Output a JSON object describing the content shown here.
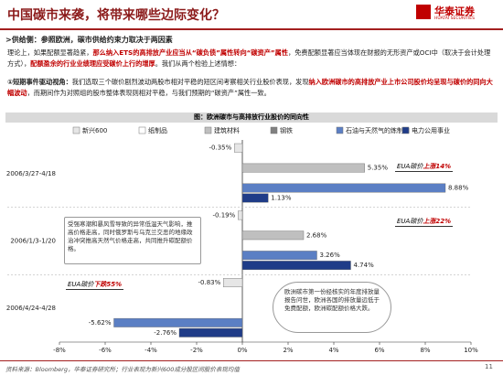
{
  "header": {
    "title": "中国碳市来袭，将带来哪些边际变化？",
    "logo": "华泰证券",
    "logo_en": "HUATAI SECURITIES"
  },
  "section": ">供给侧：参照欧洲，碳市供给约束力取决于两因素",
  "paragraphs": [
    [
      "理论上，如果配额显著趋紧，",
      "那么纳入ETS的高排放产业应当从“碳负债”属性转向“碳资产”属性",
      "，免费配额显著应当体现在财报的无形资产或OCI中（取决于会计处理方式），",
      "配额盈余的行业业绩理应受碳价上行的增厚",
      "。我们从两个检验上述情想："
    ],
    [
      "①短期事件驱动视角：",
      "我们选取三个碳价剧烈波动两股市相对平稳的短区间考察相关行业股价表现，发现",
      "纳入欧洲碳市的高排放产业上市公司股价均呈现与碳价的同向大幅波动",
      "，而期间作为对照组的股市整体表现则相对平稳，与我们预期的“碳资产”属性一致。"
    ]
  ],
  "figure_title": "图：欧洲碳市与高排放行业股价的同向性",
  "source": "资料来源：Bloomberg，华泰证券研究所；行业表现为新兴600成分股区间股价表现均值",
  "page_number": "11",
  "chart_data": {
    "type": "hbar",
    "categories": [
      "2006/3/27-4/18",
      "2006/1/3-1/20",
      "2006/4/24-4/28"
    ],
    "series": [
      {
        "name": "新兴600",
        "color": "#e6e6e6",
        "values": [
          -0.35,
          -0.19,
          -0.83
        ],
        "value_labels": [
          "-0.35%",
          "-0.19%",
          "-0.83%"
        ]
      },
      {
        "name": "纸制品",
        "color": "#ffffff",
        "values": [
          null,
          null,
          null
        ]
      },
      {
        "name": "建筑材料",
        "color": "#bfbfbf",
        "values": [
          5.35,
          2.68,
          null
        ],
        "value_labels": [
          "5.35%",
          "2.68%",
          null
        ]
      },
      {
        "name": "钢铁",
        "color": "#808080",
        "values": [
          null,
          null,
          null
        ]
      },
      {
        "name": "石油与天然气的炼制和",
        "color": "#5b7fc4",
        "values": [
          8.88,
          3.26,
          -5.62
        ],
        "value_labels": [
          "8.88%",
          "3.26%",
          "-5.62%"
        ]
      },
      {
        "name": "电力公用事业",
        "color": "#1f3c88",
        "values": [
          1.13,
          4.74,
          -2.76
        ],
        "value_labels": [
          "1.13%",
          "4.74%",
          "-2.76%"
        ]
      }
    ],
    "xlim": [
      -8,
      10
    ],
    "xticks": [
      {
        "value": -8,
        "label": "-8%"
      },
      {
        "value": -6,
        "label": "-6%"
      },
      {
        "value": -4,
        "label": "-4%"
      },
      {
        "value": -2,
        "label": "-2%"
      },
      {
        "value": 0,
        "label": "0%"
      },
      {
        "value": 2,
        "label": "2%"
      },
      {
        "value": 4,
        "label": "4%"
      },
      {
        "value": 6,
        "label": "6%"
      },
      {
        "value": 8,
        "label": "8%"
      },
      {
        "value": 10,
        "label": "10%"
      }
    ],
    "annotations": [
      {
        "label": "EUA碳价",
        "change": "上涨14%"
      },
      {
        "label": "EUA碳价",
        "change": "上涨22%"
      },
      {
        "label": "EUA碳价",
        "change": "下跌55%"
      }
    ],
    "notes": [
      "受强寒潮和暴风雪导致的异常低温天气影响，推高价格走高，同时俄罗斯与乌克兰交恶的地缘政治冲突推高天然气价格走高，共同推升碳配额价格。",
      "欧洲碳市第一份经核实的年度排放量报告问世，欧洲各国的排放量远低于免费配额，欧洲碳配额价格大跌。"
    ]
  }
}
